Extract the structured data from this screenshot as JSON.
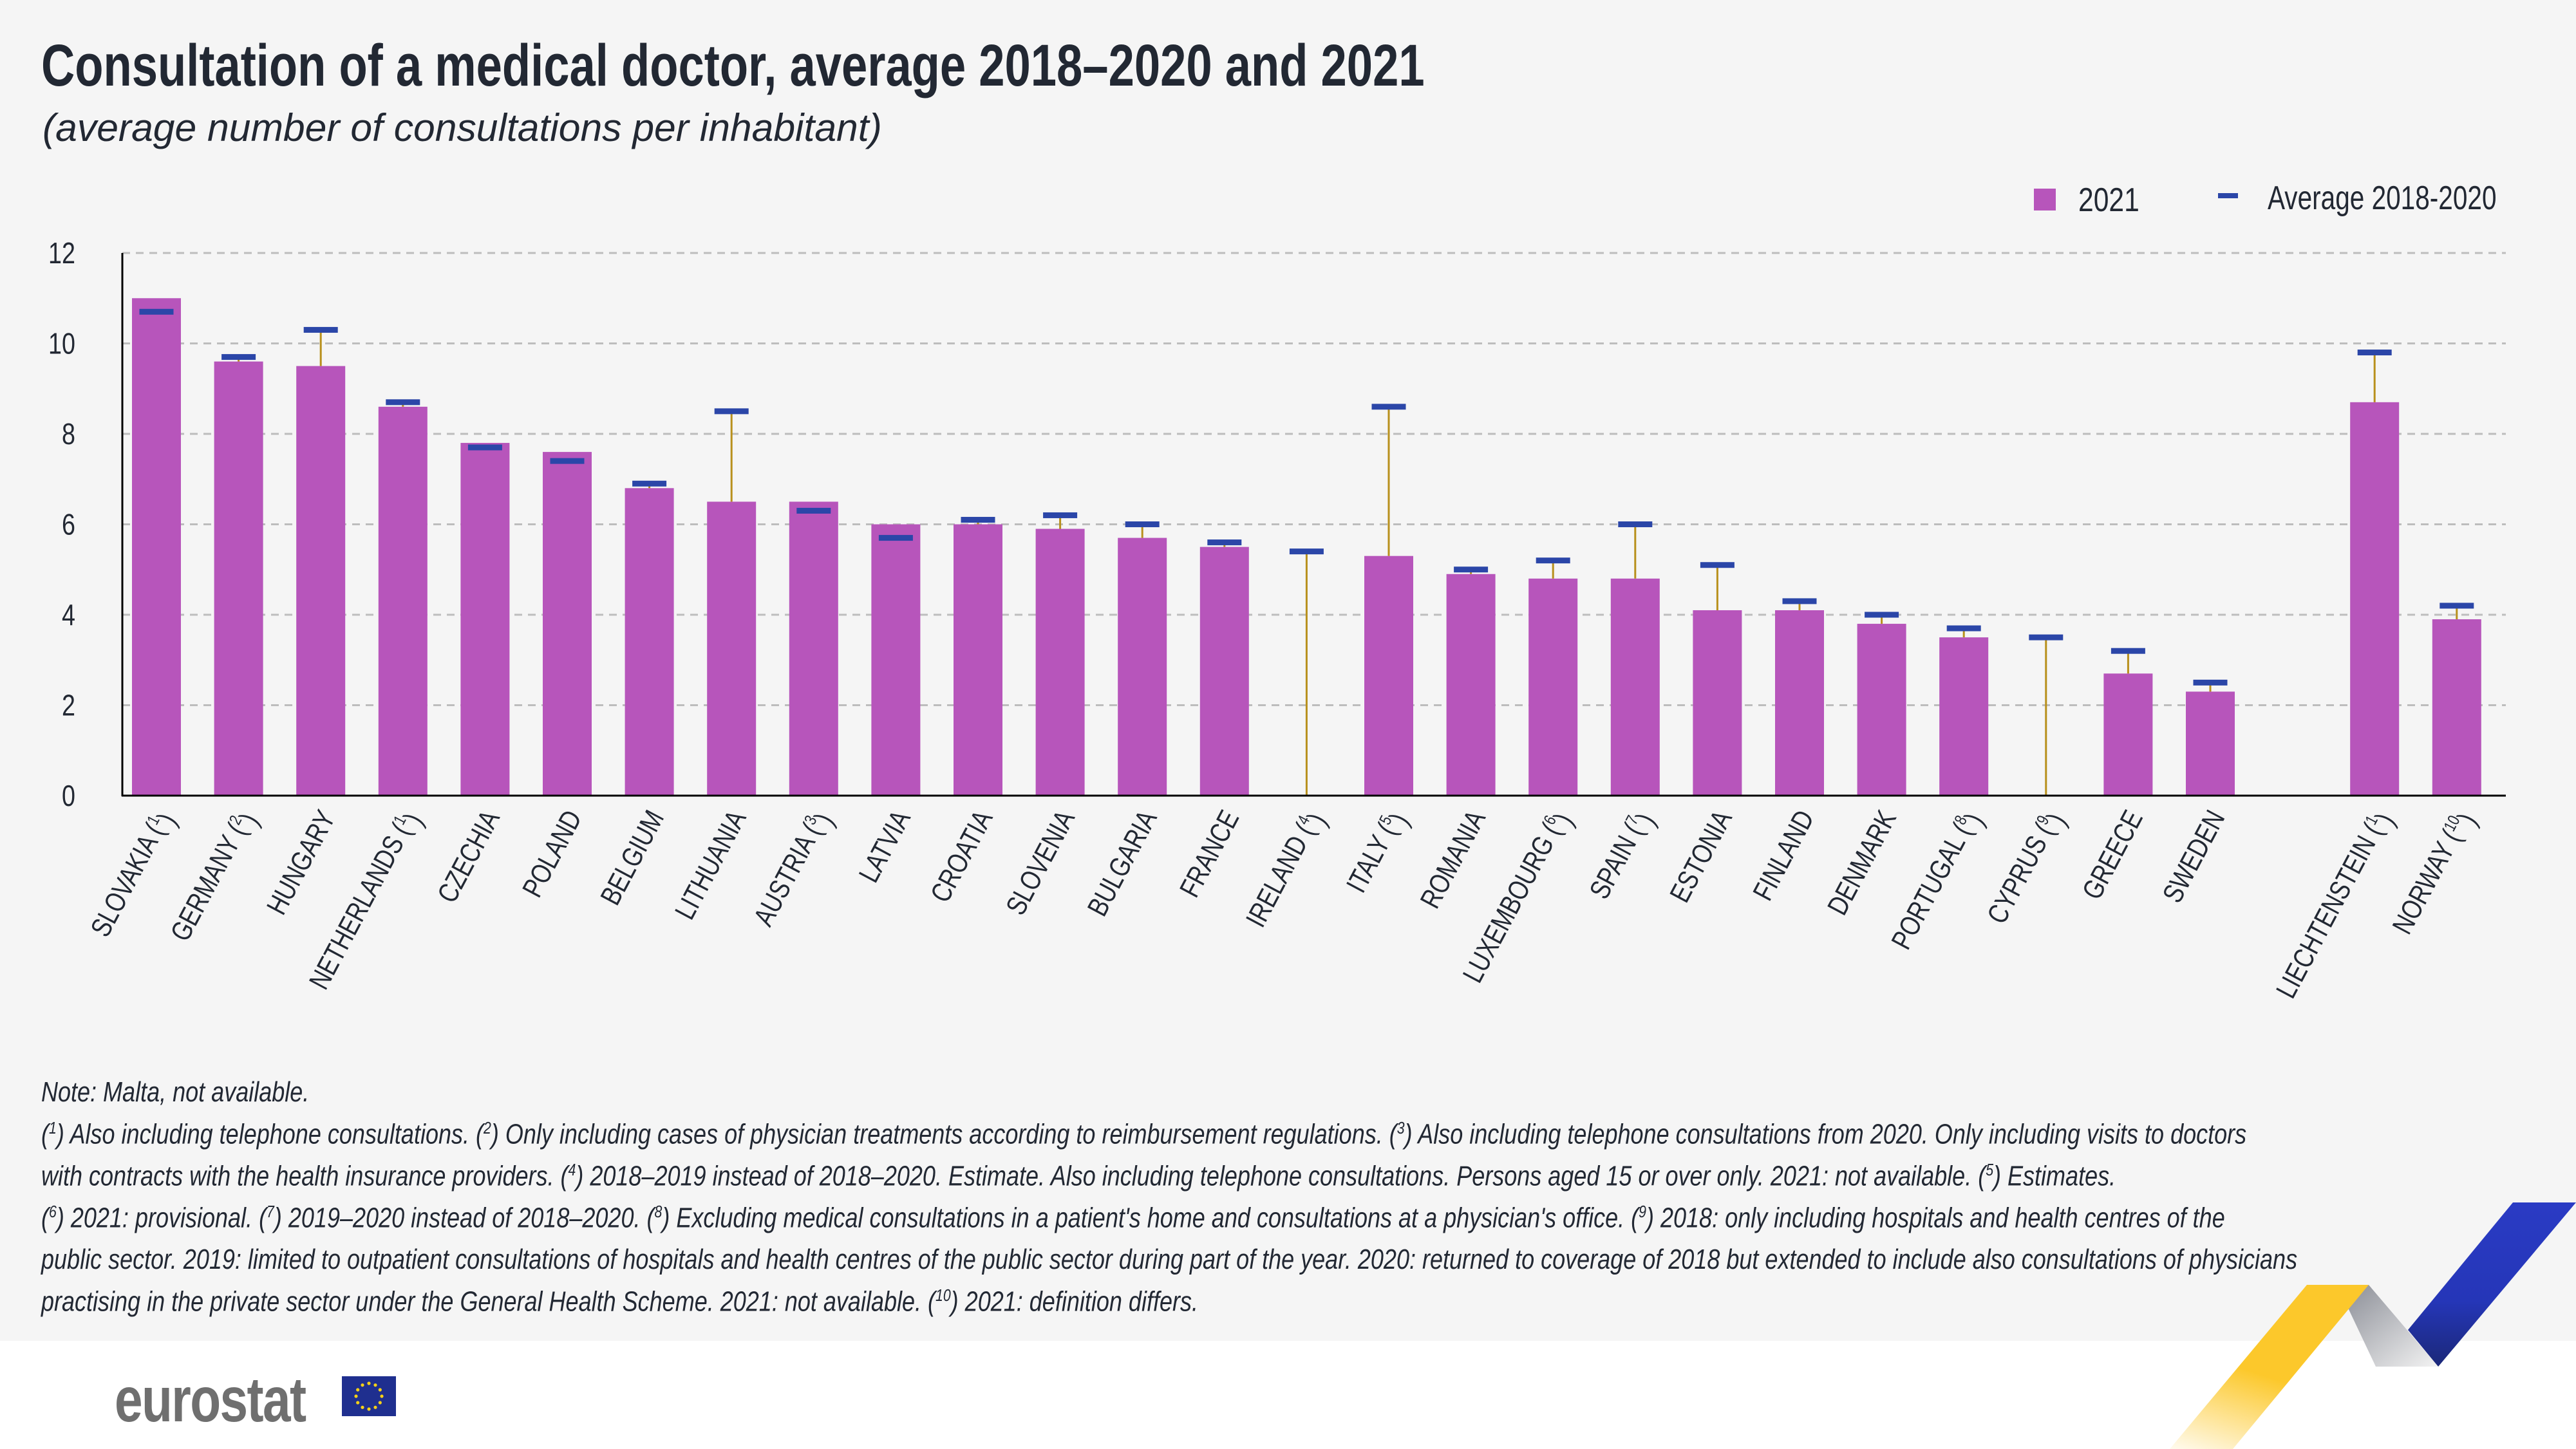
{
  "title": "Consultation of a medical doctor, average 2018–2020 and 2021",
  "subtitle": "(average number of consultations per inhabitant)",
  "colors": {
    "bar_2021": "#b755bb",
    "average_marker": "#2b46a8",
    "connector": "#b8901c",
    "grid": "#bdbdbd",
    "text": "#222833",
    "background": "#f5f5f5"
  },
  "chart_data": {
    "type": "bar",
    "title": "Consultation of a medical doctor, average 2018–2020 and 2021",
    "subtitle": "(average number of consultations per inhabitant)",
    "xlabel": "",
    "ylabel": "",
    "ylim": [
      0,
      12
    ],
    "yticks": [
      "0",
      "2",
      "4",
      "6",
      "8",
      "10",
      "12"
    ],
    "grid": true,
    "legend_position": "top-right",
    "categories": [
      {
        "name": "SLOVAKIA",
        "note": "1"
      },
      {
        "name": "GERMANY",
        "note": "2"
      },
      {
        "name": "HUNGARY"
      },
      {
        "name": "NETHERLANDS",
        "note": "1"
      },
      {
        "name": "CZECHIA"
      },
      {
        "name": "POLAND"
      },
      {
        "name": "BELGIUM"
      },
      {
        "name": "LITHUANIA"
      },
      {
        "name": "AUSTRIA",
        "note": "3"
      },
      {
        "name": "LATVIA"
      },
      {
        "name": "CROATIA"
      },
      {
        "name": "SLOVENIA"
      },
      {
        "name": "BULGARIA"
      },
      {
        "name": "FRANCE"
      },
      {
        "name": "IRELAND",
        "note": "4"
      },
      {
        "name": "ITALY",
        "note": "5"
      },
      {
        "name": "ROMANIA"
      },
      {
        "name": "LUXEMBOURG",
        "note": "6"
      },
      {
        "name": "SPAIN",
        "note": "7"
      },
      {
        "name": "ESTONIA"
      },
      {
        "name": "FINLAND"
      },
      {
        "name": "DENMARK"
      },
      {
        "name": "PORTUGAL",
        "note": "8"
      },
      {
        "name": "CYPRUS",
        "note": "9"
      },
      {
        "name": "GREECE"
      },
      {
        "name": "SWEDEN"
      },
      {
        "name": "LIECHTENSTEIN",
        "note": "1"
      },
      {
        "name": "NORWAY",
        "note": "10"
      }
    ],
    "series": [
      {
        "name": "2021",
        "kind": "bar",
        "values": [
          11.0,
          9.6,
          9.5,
          8.6,
          7.8,
          7.6,
          6.8,
          6.5,
          6.5,
          6.0,
          6.0,
          5.9,
          5.7,
          5.5,
          null,
          5.3,
          4.9,
          4.8,
          4.8,
          4.1,
          4.1,
          3.8,
          3.5,
          null,
          2.7,
          2.3,
          8.7,
          3.9
        ]
      },
      {
        "name": "Average 2018-2020",
        "kind": "marker",
        "values": [
          10.7,
          9.7,
          10.3,
          8.7,
          7.7,
          7.4,
          6.9,
          8.5,
          6.3,
          5.7,
          6.1,
          6.2,
          6.0,
          5.6,
          5.4,
          8.6,
          5.0,
          5.2,
          6.0,
          5.1,
          4.3,
          4.0,
          3.7,
          3.5,
          3.2,
          2.5,
          9.8,
          4.2
        ]
      }
    ]
  },
  "legend": {
    "bar_label": "2021",
    "marker_label": "Average 2018-2020"
  },
  "notes": [
    [
      {
        "t": "Note: Malta, not available."
      }
    ],
    [
      {
        "s": "1",
        "t": " Also including telephone consultations. "
      },
      {
        "s": "2",
        "t": " Only including cases of physician treatments according to reimbursement regulations. "
      },
      {
        "s": "3",
        "t": " Also including telephone consultations from 2020. Only including visits to doctors"
      }
    ],
    [
      {
        "t": "with contracts with the health insurance providers.  "
      },
      {
        "s": "4",
        "t": " 2018–2019 instead of 2018–2020. Estimate. Also including telephone consultations. Persons aged 15 or over only. 2021: not available. "
      },
      {
        "s": "5",
        "t": " Estimates."
      }
    ],
    [
      {
        "s": "6",
        "t": " 2021: provisional. "
      },
      {
        "s": "7",
        "t": " 2019–2020 instead of 2018–2020. "
      },
      {
        "s": "8",
        "t": " Excluding medical consultations in a patient's home and consultations at a physician's office. "
      },
      {
        "s": "9",
        "t": " 2018: only including hospitals and health centres of the"
      }
    ],
    [
      {
        "t": "public sector. 2019: limited to outpatient consultations of hospitals and health centres of the public sector during part of the year. 2020: returned to coverage of 2018 but extended to include also consultations of physicians"
      }
    ],
    [
      {
        "t": "practising in the private sector under the General Health Scheme. 2021: not available.  "
      },
      {
        "s": "10",
        "t": " 2021: definition differs."
      }
    ]
  ],
  "logo": {
    "text": "eurostat"
  }
}
